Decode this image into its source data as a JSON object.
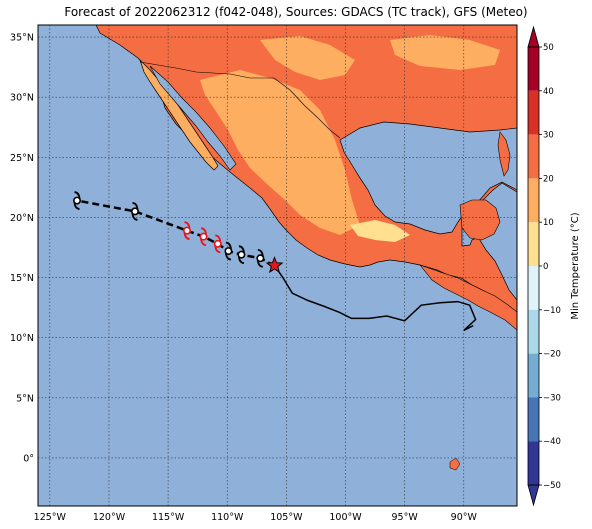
{
  "title": "Forecast of 2022062312 (f042-048), Sources: GDACS (TC track), GFS (Meteo)",
  "map": {
    "lon_min": -126,
    "lon_max": -85.5,
    "lat_min": -4,
    "lat_max": 36,
    "lon_ticks": [
      {
        "value": -125,
        "label": "125°W"
      },
      {
        "value": -120,
        "label": "120°W"
      },
      {
        "value": -115,
        "label": "115°W"
      },
      {
        "value": -110,
        "label": "110°W"
      },
      {
        "value": -105,
        "label": "105°W"
      },
      {
        "value": -100,
        "label": "100°W"
      },
      {
        "value": -95,
        "label": "95°W"
      },
      {
        "value": -90,
        "label": "90°W"
      }
    ],
    "lat_ticks": [
      {
        "value": 35,
        "label": "35°N"
      },
      {
        "value": 30,
        "label": "30°N"
      },
      {
        "value": 25,
        "label": "25°N"
      },
      {
        "value": 20,
        "label": "20°N"
      },
      {
        "value": 15,
        "label": "15°N"
      },
      {
        "value": 10,
        "label": "10°N"
      },
      {
        "value": 5,
        "label": "5°N"
      },
      {
        "value": 0,
        "label": "0°"
      }
    ],
    "grid": true,
    "ocean_color": "#8fb1d9"
  },
  "colorbar": {
    "label": "Min Temperature (°C)",
    "ticks": [
      "50",
      "40",
      "30",
      "20",
      "10",
      "0",
      "−10",
      "−20",
      "−30",
      "−40",
      "−50"
    ],
    "bands": [
      {
        "from": 40,
        "to": 50,
        "color": "#a50026"
      },
      {
        "from": 30,
        "to": 40,
        "color": "#d73027"
      },
      {
        "from": 20,
        "to": 30,
        "color": "#f46d43"
      },
      {
        "from": 10,
        "to": 20,
        "color": "#fdae61"
      },
      {
        "from": 0,
        "to": 10,
        "color": "#fee090"
      },
      {
        "from": -10,
        "to": 0,
        "color": "#e0f3f8"
      },
      {
        "from": -20,
        "to": -10,
        "color": "#abd9e9"
      },
      {
        "from": -30,
        "to": -20,
        "color": "#74add1"
      },
      {
        "from": -40,
        "to": -30,
        "color": "#4575b4"
      },
      {
        "from": -50,
        "to": -40,
        "color": "#313695"
      }
    ]
  },
  "track": {
    "current_position": {
      "lon": -106,
      "lat": 16
    },
    "forecast_points": [
      {
        "lon": -107.2,
        "lat": 16.6,
        "category": "storm"
      },
      {
        "lon": -108.8,
        "lat": 16.9,
        "category": "storm"
      },
      {
        "lon": -109.9,
        "lat": 17.2,
        "category": "storm"
      },
      {
        "lon": -110.8,
        "lat": 17.8,
        "category": "hurricane"
      },
      {
        "lon": -112.0,
        "lat": 18.4,
        "category": "hurricane"
      },
      {
        "lon": -113.4,
        "lat": 18.9,
        "category": "hurricane"
      },
      {
        "lon": -117.8,
        "lat": 20.5,
        "category": "storm"
      },
      {
        "lon": -122.7,
        "lat": 21.4,
        "category": "storm"
      }
    ],
    "past_track": [
      {
        "lon": -106,
        "lat": 16
      },
      {
        "lon": -105.3,
        "lat": 15
      },
      {
        "lon": -104.5,
        "lat": 13.7
      },
      {
        "lon": -103.2,
        "lat": 13.1
      },
      {
        "lon": -101.8,
        "lat": 12.6
      },
      {
        "lon": -100.5,
        "lat": 12.1
      },
      {
        "lon": -99.5,
        "lat": 11.6
      },
      {
        "lon": -98,
        "lat": 11.6
      },
      {
        "lon": -96.5,
        "lat": 11.8
      },
      {
        "lon": -95,
        "lat": 11.4
      },
      {
        "lon": -93.6,
        "lat": 12.7
      },
      {
        "lon": -92,
        "lat": 12.9
      },
      {
        "lon": -90.5,
        "lat": 13
      },
      {
        "lon": -89.5,
        "lat": 12.7
      },
      {
        "lon": -89,
        "lat": 11.5
      },
      {
        "lon": -90,
        "lat": 10.6
      },
      {
        "lon": -89.2,
        "lat": 11
      }
    ]
  }
}
